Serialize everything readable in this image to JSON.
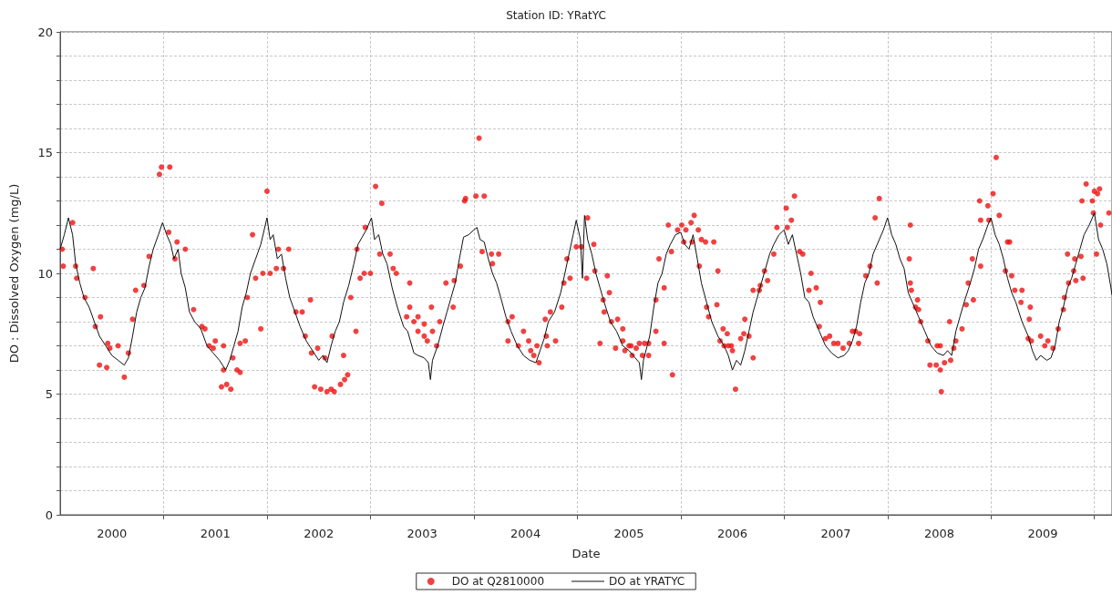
{
  "chart_data": {
    "type": "scatter",
    "title": "Station ID: YRatYC",
    "xlabel": "Date",
    "ylabel": "DO : Dissolved Oxygen (mg/L)",
    "xlim": [
      2000,
      2010.17
    ],
    "xticks": [
      {
        "value": 2000.5,
        "label": "2000"
      },
      {
        "value": 2001,
        "label": null
      },
      {
        "value": 2001.5,
        "label": "2001"
      },
      {
        "value": 2002,
        "label": null
      },
      {
        "value": 2002.5,
        "label": "2002"
      },
      {
        "value": 2003,
        "label": null
      },
      {
        "value": 2003.5,
        "label": "2003"
      },
      {
        "value": 2004,
        "label": null
      },
      {
        "value": 2004.5,
        "label": "2004"
      },
      {
        "value": 2005,
        "label": null
      },
      {
        "value": 2005.5,
        "label": "2005"
      },
      {
        "value": 2006,
        "label": null
      },
      {
        "value": 2006.5,
        "label": "2006"
      },
      {
        "value": 2007,
        "label": null
      },
      {
        "value": 2007.5,
        "label": "2007"
      },
      {
        "value": 2008,
        "label": null
      },
      {
        "value": 2008.5,
        "label": "2008"
      },
      {
        "value": 2009,
        "label": null
      },
      {
        "value": 2009.5,
        "label": "2009"
      },
      {
        "value": 2010,
        "label": null
      }
    ],
    "ylim": [
      0,
      20
    ],
    "yticks": [
      0,
      {
        "value": 1,
        "label": null
      },
      {
        "value": 2,
        "label": null
      },
      {
        "value": 3,
        "label": null
      },
      {
        "value": 4,
        "label": null
      },
      5,
      {
        "value": 6,
        "label": null
      },
      {
        "value": 7,
        "label": null
      },
      {
        "value": 8,
        "label": null
      },
      {
        "value": 9,
        "label": null
      },
      10,
      {
        "value": 11,
        "label": null
      },
      {
        "value": 12,
        "label": null
      },
      {
        "value": 13,
        "label": null
      },
      {
        "value": 14,
        "label": null
      },
      15,
      {
        "value": 16,
        "label": null
      },
      {
        "value": 17,
        "label": null
      },
      {
        "value": 18,
        "label": null
      },
      {
        "value": 19,
        "label": null
      },
      20
    ],
    "grid": true,
    "legend": "bottom",
    "series": [
      {
        "name": "DO at Q2810000",
        "color": "#ee1111",
        "marker": "circle",
        "x": [
          2000.02,
          2000.03,
          2000.12,
          2000.15,
          2000.16,
          2000.32,
          2000.24,
          2000.34,
          2000.39,
          2000.38,
          2000.46,
          2000.48,
          2000.45,
          2000.56,
          2000.62,
          2000.66,
          2000.7,
          2000.73,
          2000.81,
          2000.86,
          2000.96,
          2000.98,
          2001.06,
          2001.05,
          2001.13,
          2001.11,
          2001.21,
          2001.29,
          2001.37,
          2001.4,
          2001.44,
          2001.48,
          2001.5,
          2001.58,
          2001.58,
          2001.56,
          2001.61,
          2001.65,
          2001.67,
          2001.71,
          2001.74,
          2001.74,
          2001.79,
          2001.81,
          2001.94,
          2001.89,
          2001.96,
          2001.86,
          2002.0,
          2002.03,
          2002.11,
          2002.09,
          2002.16,
          2002.21,
          2002.28,
          2002.34,
          2002.42,
          2002.37,
          2002.43,
          2002.49,
          2002.46,
          2002.52,
          2002.58,
          2002.62,
          2002.65,
          2002.56,
          2002.63,
          2002.71,
          2002.75,
          2002.78,
          2002.74,
          2002.81,
          2002.86,
          2002.94,
          2002.87,
          2002.9,
          2002.95,
          2003.0,
          2003.05,
          2003.11,
          2003.09,
          2003.19,
          2003.22,
          2003.25,
          2003.38,
          2003.38,
          2003.35,
          2003.42,
          2003.46,
          2003.46,
          2003.52,
          2003.52,
          2003.55,
          2003.59,
          2003.6,
          2003.64,
          2003.67,
          2003.73,
          2003.8,
          2003.81,
          2003.87,
          2003.91,
          2003.92,
          2004.02,
          2004.1,
          2004.05,
          2004.08,
          2004.17,
          2004.24,
          2004.18,
          2004.33,
          2004.37,
          2004.33,
          2004.43,
          2004.48,
          2004.53,
          2004.55,
          2004.58,
          2004.63,
          2004.61,
          2004.7,
          2004.71,
          2004.69,
          2004.74,
          2004.79,
          2004.85,
          2004.87,
          2004.9,
          2004.93,
          2004.99,
          2005.04,
          2005.1,
          2005.09,
          2005.16,
          2005.17,
          2005.29,
          2005.31,
          2005.25,
          2005.22,
          2005.26,
          2005.33,
          2005.39,
          2005.37,
          2005.44,
          2005.44,
          2005.46,
          2005.5,
          2005.52,
          2005.57,
          2005.53,
          2005.6,
          2005.63,
          2005.65,
          2005.69,
          2005.69,
          2005.76,
          2005.76,
          2005.84,
          2005.84,
          2005.79,
          2005.92,
          2005.88,
          2005.91,
          2005.97,
          2006.01,
          2006.05,
          2006.1,
          2006.13,
          2006.17,
          2006.03,
          2006.11,
          2006.2,
          2006.24,
          2006.32,
          2006.18,
          2006.36,
          2006.25,
          2006.35,
          2006.27,
          2006.41,
          2006.45,
          2006.38,
          2006.42,
          2006.46,
          2006.49,
          2006.5,
          2006.53,
          2006.62,
          2006.61,
          2006.58,
          2006.66,
          2006.7,
          2006.7,
          2006.76,
          2006.77,
          2006.81,
          2006.84,
          2006.93,
          2006.9,
          2007.02,
          2007.03,
          2007.07,
          2007.1,
          2007.15,
          2007.18,
          2007.26,
          2007.24,
          2007.31,
          2007.35,
          2007.34,
          2007.4,
          2007.44,
          2007.48,
          2007.52,
          2007.57,
          2007.63,
          2007.66,
          2007.69,
          2007.72,
          2007.73,
          2007.79,
          2007.83,
          2007.9,
          2007.88,
          2007.92,
          2008.22,
          2008.21,
          2008.22,
          2008.23,
          2008.29,
          2008.27,
          2008.3,
          2008.32,
          2008.39,
          2008.41,
          2008.48,
          2008.51,
          2008.47,
          2008.51,
          2008.52,
          2008.55,
          2008.61,
          2008.6,
          2008.64,
          2008.66,
          2008.72,
          2008.76,
          2008.78,
          2008.83,
          2008.82,
          2008.9,
          2008.89,
          2008.9,
          2008.97,
          2008.98,
          2009.02,
          2009.05,
          2009.08,
          2009.16,
          2009.18,
          2009.14,
          2009.2,
          2009.23,
          2009.3,
          2009.29,
          2009.38,
          2009.37,
          2009.36,
          2009.39,
          2009.48,
          2009.55,
          2009.52,
          2009.6,
          2009.65,
          2009.7,
          2009.71,
          2009.75,
          2009.74,
          2009.81,
          2009.8,
          2009.82,
          2009.89,
          2009.87,
          2009.88,
          2009.92,
          2010.0,
          2010.03,
          2010.05,
          2009.99,
          2009.98,
          2010.06,
          2010.02,
          2010.14
        ],
        "values": [
          11.0,
          10.3,
          12.1,
          10.3,
          9.8,
          10.2,
          9.0,
          7.8,
          8.2,
          6.2,
          7.1,
          6.9,
          6.1,
          7.0,
          5.7,
          6.7,
          8.1,
          9.3,
          9.5,
          10.7,
          14.1,
          14.4,
          14.4,
          11.7,
          11.3,
          10.6,
          11.0,
          8.5,
          7.8,
          7.7,
          7.0,
          6.9,
          7.2,
          7.0,
          6.0,
          5.3,
          5.4,
          5.2,
          6.5,
          6.0,
          5.9,
          7.1,
          7.2,
          9.0,
          7.7,
          9.8,
          10.0,
          11.6,
          13.4,
          10.0,
          11.0,
          10.2,
          10.2,
          11.0,
          8.4,
          8.4,
          8.9,
          7.4,
          6.7,
          6.9,
          5.3,
          5.2,
          5.1,
          5.2,
          5.1,
          6.5,
          7.4,
          5.4,
          5.6,
          5.8,
          6.6,
          9.0,
          7.6,
          10.0,
          11.0,
          9.8,
          11.9,
          10.0,
          13.6,
          12.9,
          10.8,
          10.8,
          10.2,
          10.0,
          9.6,
          8.6,
          8.2,
          8.0,
          8.2,
          7.6,
          7.9,
          7.4,
          7.2,
          8.6,
          7.6,
          7.0,
          8.0,
          9.6,
          8.6,
          9.7,
          10.3,
          13.0,
          13.1,
          13.2,
          13.2,
          15.6,
          10.9,
          10.8,
          10.8,
          10.4,
          8.0,
          8.2,
          7.2,
          7.0,
          7.6,
          7.2,
          6.8,
          6.6,
          6.3,
          7.0,
          7.4,
          7.0,
          8.1,
          8.4,
          7.2,
          8.6,
          9.6,
          10.6,
          9.8,
          11.1,
          11.1,
          12.3,
          9.8,
          11.2,
          10.1,
          9.9,
          9.2,
          8.9,
          7.1,
          8.4,
          8.0,
          8.1,
          6.9,
          7.7,
          7.2,
          6.8,
          7.0,
          7.0,
          6.9,
          6.6,
          7.1,
          6.6,
          7.1,
          6.6,
          7.1,
          7.6,
          8.9,
          7.1,
          9.4,
          10.6,
          5.8,
          12.0,
          10.9,
          11.8,
          12.0,
          11.8,
          12.1,
          12.4,
          11.8,
          11.3,
          11.3,
          11.4,
          11.3,
          11.3,
          10.3,
          10.1,
          8.6,
          8.7,
          8.2,
          7.7,
          7.5,
          7.2,
          7.0,
          7.0,
          7.0,
          6.8,
          5.2,
          8.1,
          7.5,
          7.3,
          7.4,
          6.5,
          9.3,
          9.3,
          9.5,
          10.1,
          9.7,
          11.9,
          10.8,
          12.7,
          11.9,
          12.2,
          13.2,
          10.9,
          10.8,
          10.0,
          9.3,
          9.4,
          8.8,
          7.8,
          7.3,
          7.4,
          7.1,
          7.1,
          6.9,
          7.1,
          7.6,
          7.6,
          7.1,
          7.5,
          9.9,
          10.3,
          9.6,
          12.3,
          13.1,
          12.0,
          10.6,
          9.6,
          9.3,
          8.9,
          8.6,
          8.5,
          8.0,
          7.2,
          6.2,
          7.0,
          7.0,
          6.2,
          6.0,
          5.1,
          6.3,
          6.4,
          8.0,
          6.9,
          7.2,
          7.7,
          8.7,
          9.6,
          8.9,
          10.6,
          10.3,
          13.0,
          12.2,
          12.8,
          12.2,
          13.3,
          14.8,
          12.4,
          11.3,
          11.3,
          10.1,
          9.9,
          9.3,
          9.3,
          8.8,
          8.6,
          8.1,
          7.3,
          7.2,
          7.4,
          7.2,
          7.0,
          6.9,
          7.7,
          8.5,
          9.0,
          9.6,
          10.8,
          10.6,
          10.1,
          9.7,
          9.8,
          10.7,
          13.0,
          13.7,
          13.4,
          13.3,
          13.5,
          12.5,
          13.0,
          12.0,
          10.8,
          12.5
        ]
      },
      {
        "name": "DO at YRATYC",
        "type": "line",
        "color": "#111111",
        "marker": "none",
        "line_style": "solid",
        "x": [
          2000.0,
          2000.04,
          2000.08,
          2000.12,
          2000.15,
          2000.19,
          2000.23,
          2000.28,
          2000.33,
          2000.38,
          2000.44,
          2000.5,
          2000.56,
          2000.62,
          2000.66,
          2000.7,
          2000.74,
          2000.78,
          2000.82,
          2000.86,
          2000.9,
          2000.95,
          2000.99,
          2001.03,
          2001.07,
          2001.1,
          2001.14,
          2001.17,
          2001.21,
          2001.25,
          2001.3,
          2001.36,
          2001.42,
          2001.48,
          2001.54,
          2001.6,
          2001.64,
          2001.68,
          2001.72,
          2001.76,
          2001.8,
          2001.84,
          2001.89,
          2001.94,
          2002.0,
          2002.03,
          2002.06,
          2002.1,
          2002.14,
          2002.18,
          2002.22,
          2002.27,
          2002.32,
          2002.38,
          2002.44,
          2002.5,
          2002.54,
          2002.58,
          2002.62,
          2002.66,
          2002.7,
          2002.74,
          2002.79,
          2002.84,
          2002.88,
          2002.92,
          2002.96,
          2003.01,
          2003.04,
          2003.08,
          2003.12,
          2003.16,
          2003.21,
          2003.26,
          2003.32,
          2003.36,
          2003.42,
          2003.46,
          2003.52,
          2003.56,
          2003.58,
          2003.6,
          2003.65,
          2003.7,
          2003.74,
          2003.78,
          2003.82,
          2003.86,
          2003.9,
          2003.95,
          2004.0,
          2004.03,
          2004.06,
          2004.1,
          2004.14,
          2004.18,
          2004.22,
          2004.26,
          2004.31,
          2004.36,
          2004.42,
          2004.48,
          2004.54,
          2004.6,
          2004.64,
          2004.68,
          2004.72,
          2004.78,
          2004.84,
          2004.88,
          2004.92,
          2004.96,
          2004.99,
          2005.03,
          2005.05,
          2005.07,
          2005.1,
          2005.14,
          2005.18,
          2005.22,
          2005.26,
          2005.32,
          2005.38,
          2005.44,
          2005.5,
          2005.56,
          2005.6,
          2005.62,
          2005.64,
          2005.7,
          2005.74,
          2005.78,
          2005.82,
          2005.86,
          2005.9,
          2005.95,
          2006.0,
          2006.04,
          2006.08,
          2006.12,
          2006.16,
          2006.2,
          2006.25,
          2006.3,
          2006.36,
          2006.42,
          2006.46,
          2006.5,
          2006.54,
          2006.58,
          2006.62,
          2006.66,
          2006.7,
          2006.74,
          2006.78,
          2006.82,
          2006.86,
          2006.9,
          2006.95,
          2007.0,
          2007.04,
          2007.08,
          2007.12,
          2007.16,
          2007.2,
          2007.24,
          2007.28,
          2007.34,
          2007.4,
          2007.46,
          2007.52,
          2007.58,
          2007.62,
          2007.66,
          2007.7,
          2007.74,
          2007.78,
          2007.82,
          2007.86,
          2007.92,
          2007.96,
          2008.0,
          2008.04,
          2008.08,
          2008.12,
          2008.16,
          2008.2,
          2008.24,
          2008.3,
          2008.36,
          2008.42,
          2008.48,
          2008.54,
          2008.58,
          2008.62,
          2008.66,
          2008.7,
          2008.74,
          2008.8,
          2008.84,
          2008.88,
          2008.92,
          2008.97,
          2009.0,
          2009.04,
          2009.08,
          2009.12,
          2009.16,
          2009.2,
          2009.24,
          2009.3,
          2009.36,
          2009.4,
          2009.44,
          2009.48,
          2009.54,
          2009.58,
          2009.62,
          2009.66,
          2009.7,
          2009.74,
          2009.78,
          2009.82,
          2009.86,
          2009.9,
          2009.95,
          2010.0,
          2010.04,
          2010.08,
          2010.12,
          2010.16,
          2010.17
        ],
        "values": [
          11.0,
          11.6,
          12.3,
          11.6,
          10.4,
          9.6,
          9.0,
          8.6,
          8.0,
          7.4,
          7.0,
          6.6,
          6.4,
          6.2,
          6.5,
          7.4,
          8.4,
          9.0,
          9.4,
          10.3,
          11.0,
          11.6,
          12.1,
          11.6,
          11.2,
          10.6,
          11.0,
          10.0,
          9.4,
          8.4,
          8.0,
          7.7,
          7.0,
          6.7,
          6.4,
          6.0,
          6.4,
          7.0,
          7.6,
          8.6,
          9.2,
          10.0,
          10.6,
          11.2,
          12.3,
          11.4,
          11.6,
          10.6,
          10.8,
          9.8,
          9.0,
          8.4,
          7.8,
          7.2,
          6.8,
          6.4,
          6.6,
          6.3,
          7.0,
          7.6,
          8.0,
          8.8,
          9.5,
          10.4,
          11.2,
          11.5,
          11.8,
          12.3,
          11.4,
          11.6,
          10.8,
          10.4,
          9.4,
          8.6,
          7.8,
          7.6,
          6.7,
          6.6,
          6.5,
          6.3,
          5.6,
          6.4,
          7.0,
          7.8,
          8.4,
          9.0,
          9.6,
          10.6,
          11.5,
          11.6,
          11.8,
          11.9,
          11.4,
          11.3,
          10.6,
          10.0,
          9.6,
          9.0,
          8.2,
          7.6,
          7.0,
          6.6,
          6.4,
          6.3,
          6.8,
          7.3,
          8.0,
          8.4,
          9.2,
          10.0,
          10.8,
          11.6,
          12.2,
          11.4,
          9.8,
          12.4,
          11.4,
          10.8,
          10.0,
          9.4,
          8.8,
          8.0,
          7.6,
          7.0,
          6.8,
          6.5,
          6.3,
          5.6,
          6.4,
          7.4,
          8.6,
          9.6,
          10.0,
          10.8,
          11.2,
          11.6,
          11.7,
          11.2,
          11.0,
          11.6,
          10.6,
          9.6,
          8.8,
          8.0,
          7.4,
          7.0,
          6.6,
          6.0,
          6.4,
          6.2,
          6.8,
          7.6,
          8.4,
          9.0,
          9.6,
          10.2,
          10.8,
          11.2,
          11.6,
          11.8,
          11.2,
          11.6,
          10.8,
          10.0,
          9.0,
          8.8,
          8.2,
          7.6,
          7.0,
          6.7,
          6.5,
          6.6,
          6.8,
          7.2,
          7.8,
          8.8,
          9.6,
          10.0,
          10.8,
          11.4,
          11.8,
          12.3,
          11.6,
          11.2,
          10.6,
          10.2,
          9.2,
          8.8,
          8.2,
          7.6,
          7.0,
          6.7,
          6.6,
          6.8,
          6.6,
          7.6,
          8.2,
          8.8,
          9.6,
          10.2,
          11.0,
          11.4,
          12.0,
          12.3,
          11.6,
          11.2,
          10.6,
          9.8,
          9.2,
          8.8,
          8.0,
          7.4,
          6.8,
          6.4,
          6.6,
          6.4,
          6.5,
          7.0,
          8.0,
          8.6,
          9.4,
          9.8,
          10.4,
          11.0,
          11.6,
          12.0,
          12.5,
          11.4,
          11.0,
          10.4,
          9.4,
          9.1
        ]
      }
    ]
  }
}
